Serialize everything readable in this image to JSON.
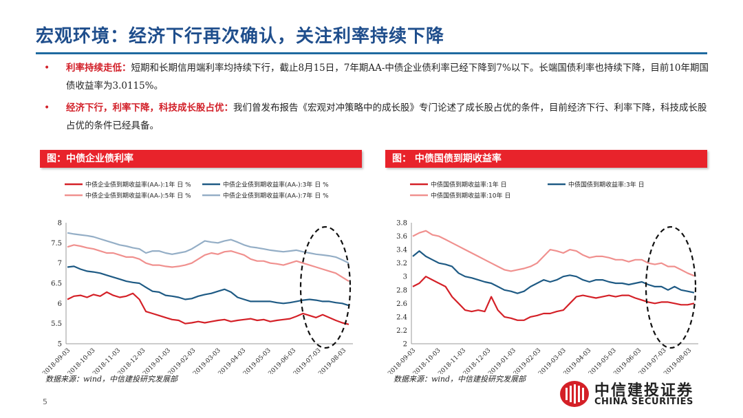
{
  "title": "宏观环境：经济下行再次确认，关注利率持续下降",
  "bullets": [
    {
      "lead": "利率持续走低：",
      "text": "短期和长期信用端利率均持续下行，截止8月15日，7年期AA-中债企业债利率已经下降到7%以下。长端国债利率也持续下降，目前10年期国债收益率为3.0115%。"
    },
    {
      "lead": "经济下行，利率下降，科技成长股占优：",
      "text": "我们曾发布报告《宏观对冲策略中的成长股》专门论述了成长股占优的条件，目前经济下行、利率下降，科技成长股占优的条件已经具备。"
    }
  ],
  "page_number": "5",
  "logo": {
    "cn": "中信建投证券",
    "en": "CHINA SECURITIES"
  },
  "chart_data": [
    {
      "type": "line",
      "title": "图：中债企业债利率",
      "source": "数据来源：wind，中信建投研究发展部",
      "x_ticks": [
        "2018-09-03",
        "2018-10-03",
        "2018-11-03",
        "2018-12-03",
        "2019-01-03",
        "2019-02-03",
        "2019-03-03",
        "2019-04-03",
        "2019-05-03",
        "2019-06-03",
        "2019-07-03",
        "2019-08-03"
      ],
      "ylim": [
        5,
        8
      ],
      "y_ticks": [
        "5",
        "5.5",
        "6",
        "6.5",
        "7",
        "7.5",
        "8"
      ],
      "grid": false,
      "legend": "top",
      "annotation": "dashed ellipse around 2019-07 to 2019-08",
      "series": [
        {
          "name": "中债企业债到期收益率(AA-):1年 日 %",
          "color": "#d42027",
          "values": [
            6.1,
            6.18,
            6.2,
            6.15,
            6.22,
            6.18,
            6.28,
            6.2,
            6.15,
            6.18,
            6.25,
            6.1,
            5.8,
            5.75,
            5.7,
            5.65,
            5.6,
            5.58,
            5.5,
            5.52,
            5.55,
            5.52,
            5.55,
            5.58,
            5.6,
            5.55,
            5.58,
            5.6,
            5.62,
            5.58,
            5.6,
            5.55,
            5.58,
            5.6,
            5.62,
            5.68,
            5.75,
            5.7,
            5.65,
            5.72,
            5.65,
            5.58,
            5.52,
            5.48
          ]
        },
        {
          "name": "中债企业债到期收益率(AA-):3年 日 %",
          "color": "#1e5a84",
          "values": [
            6.9,
            6.92,
            6.85,
            6.8,
            6.78,
            6.75,
            6.7,
            6.65,
            6.6,
            6.55,
            6.52,
            6.5,
            6.4,
            6.3,
            6.28,
            6.2,
            6.18,
            6.15,
            6.1,
            6.12,
            6.18,
            6.22,
            6.25,
            6.3,
            6.35,
            6.28,
            6.15,
            6.1,
            6.05,
            6.05,
            6.05,
            6.05,
            6.02,
            6.0,
            6.02,
            6.05,
            6.08,
            6.1,
            6.08,
            6.05,
            6.05,
            6.02,
            6.0,
            5.95
          ]
        },
        {
          "name": "中债企业债到期收益率(AA-):5年 日 %",
          "color": "#f0908e",
          "values": [
            7.4,
            7.45,
            7.42,
            7.38,
            7.35,
            7.3,
            7.25,
            7.25,
            7.2,
            7.15,
            7.15,
            7.1,
            7.0,
            6.95,
            6.95,
            6.92,
            6.9,
            6.92,
            6.95,
            7.0,
            7.1,
            7.2,
            7.25,
            7.22,
            7.28,
            7.3,
            7.25,
            7.2,
            7.1,
            7.05,
            7.05,
            7.0,
            6.98,
            6.95,
            7.0,
            7.05,
            7.0,
            6.95,
            6.9,
            6.85,
            6.8,
            6.75,
            6.65,
            6.55
          ]
        },
        {
          "name": "中债企业债到期收益率(AA-):7年 日 %",
          "color": "#94aec6",
          "values": [
            7.75,
            7.72,
            7.7,
            7.68,
            7.65,
            7.6,
            7.55,
            7.5,
            7.45,
            7.42,
            7.38,
            7.35,
            7.25,
            7.3,
            7.3,
            7.25,
            7.22,
            7.25,
            7.28,
            7.35,
            7.45,
            7.55,
            7.52,
            7.5,
            7.55,
            7.58,
            7.52,
            7.45,
            7.4,
            7.38,
            7.35,
            7.32,
            7.3,
            7.28,
            7.3,
            7.32,
            7.28,
            7.25,
            7.22,
            7.2,
            7.18,
            7.15,
            7.08,
            7.0
          ]
        }
      ]
    },
    {
      "type": "line",
      "title": "图：  中债国债到期收益率",
      "source": "数据来源：wind，中信建投研究发展部",
      "x_ticks": [
        "2018-09-03",
        "2018-10-03",
        "2018-11-03",
        "2018-12-03",
        "2019-01-03",
        "2019-02-03",
        "2019-03-03",
        "2019-04-03",
        "2019-05-03",
        "2019-06-03",
        "2019-07-03",
        "2019-08-03"
      ],
      "ylim": [
        2,
        3.8
      ],
      "y_ticks": [
        "2",
        "2.2",
        "2.4",
        "2.6",
        "2.8",
        "3",
        "3.2",
        "3.4",
        "3.6",
        "3.8"
      ],
      "grid": false,
      "legend": "top",
      "annotation": "dashed ellipse around 2019-07 to 2019-08",
      "series": [
        {
          "name": "中债国债到期收益率:1年  日",
          "color": "#d42027",
          "values": [
            2.85,
            2.9,
            3.0,
            2.95,
            2.9,
            2.85,
            2.7,
            2.6,
            2.5,
            2.48,
            2.5,
            2.48,
            2.7,
            2.5,
            2.4,
            2.38,
            2.35,
            2.35,
            2.4,
            2.42,
            2.45,
            2.45,
            2.48,
            2.5,
            2.6,
            2.7,
            2.72,
            2.7,
            2.68,
            2.7,
            2.72,
            2.7,
            2.72,
            2.72,
            2.68,
            2.65,
            2.62,
            2.6,
            2.62,
            2.62,
            2.6,
            2.58,
            2.58,
            2.6
          ]
        },
        {
          "name": "中债国债到期收益率:3年  日",
          "color": "#1e5a84",
          "values": [
            3.3,
            3.38,
            3.3,
            3.25,
            3.2,
            3.18,
            3.15,
            3.05,
            3.0,
            2.98,
            2.95,
            2.92,
            2.9,
            2.85,
            2.8,
            2.78,
            2.75,
            2.78,
            2.85,
            2.9,
            2.95,
            2.92,
            2.95,
            3.0,
            3.02,
            3.0,
            2.95,
            2.92,
            2.95,
            2.95,
            2.92,
            2.9,
            2.9,
            2.88,
            2.9,
            2.92,
            2.88,
            2.85,
            2.85,
            2.8,
            2.85,
            2.8,
            2.78,
            2.76
          ]
        },
        {
          "name": "中债国债到期收益率:10年  日",
          "color": "#f0908e",
          "values": [
            3.6,
            3.65,
            3.68,
            3.62,
            3.6,
            3.55,
            3.5,
            3.45,
            3.4,
            3.35,
            3.3,
            3.25,
            3.2,
            3.15,
            3.1,
            3.08,
            3.1,
            3.12,
            3.15,
            3.2,
            3.3,
            3.4,
            3.38,
            3.35,
            3.4,
            3.38,
            3.32,
            3.28,
            3.3,
            3.3,
            3.28,
            3.25,
            3.25,
            3.22,
            3.25,
            3.25,
            3.2,
            3.18,
            3.2,
            3.15,
            3.15,
            3.1,
            3.05,
            3.01
          ]
        }
      ]
    }
  ]
}
